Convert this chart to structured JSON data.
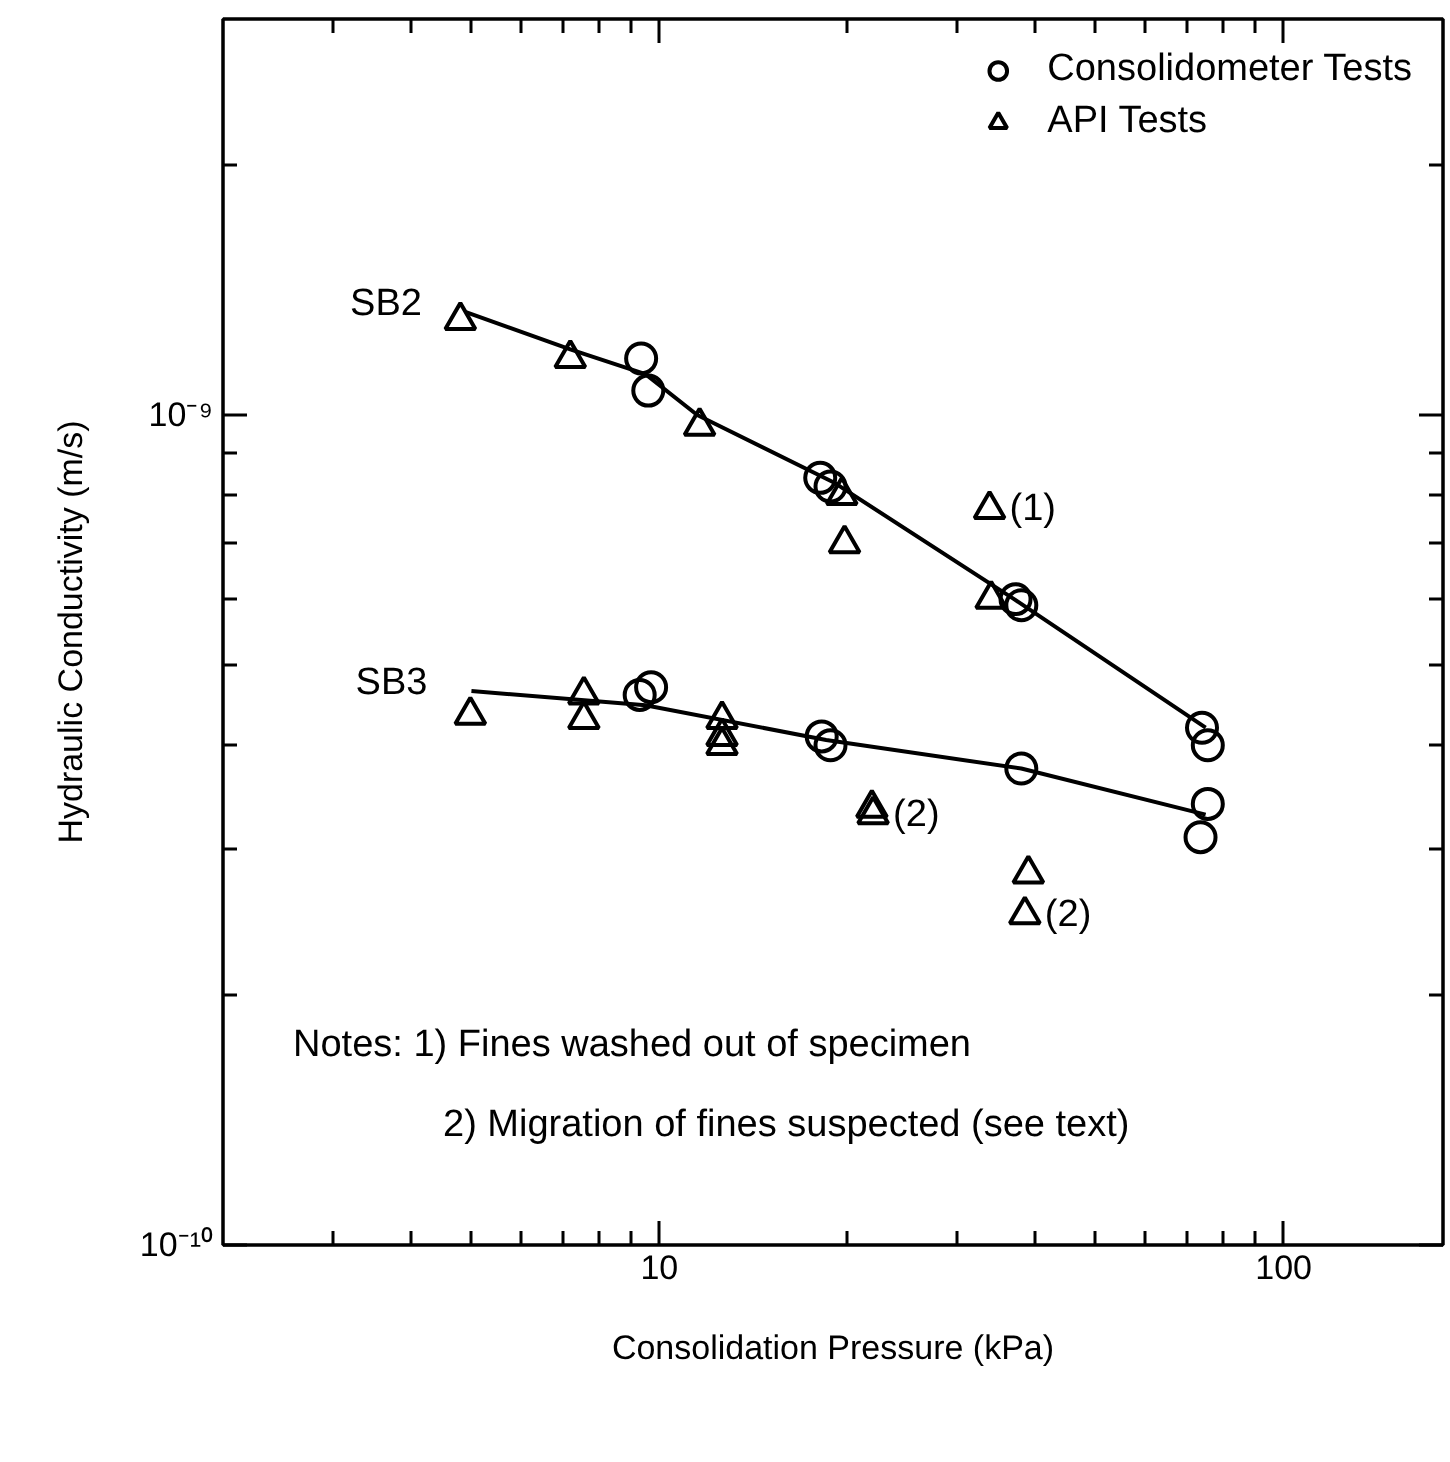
{
  "chart_data": {
    "type": "scatter",
    "xlabel": "Consolidation Pressure (kPa)",
    "ylabel": "Hydraulic Conductivity (m/s)",
    "log": "xy",
    "xlim": [
      2,
      180
    ],
    "ylim": [
      1e-10,
      3e-09
    ],
    "xticks": [
      10,
      100
    ],
    "yticks": [
      {
        "value": 1e-10,
        "label": "10⁻¹⁰"
      },
      {
        "value": 1e-09,
        "label": "10⁻⁹"
      }
    ],
    "grid": false,
    "legend": "top right",
    "series": [
      {
        "name": "Consolidometer Tests",
        "marker": "circle",
        "color": "#000000",
        "x": [
          9.35,
          9.6,
          18.1,
          18.8,
          37.2,
          38,
          74,
          75.6,
          9.3,
          9.7,
          18.2,
          18.8,
          38,
          75.6,
          73.6
        ],
        "values": [
          1.17e-09,
          1.07e-09,
          8.4e-10,
          8.2e-10,
          6e-10,
          5.9e-10,
          4.2e-10,
          4e-10,
          4.6e-10,
          4.7e-10,
          4.1e-10,
          4e-10,
          3.75e-10,
          3.4e-10,
          3.1e-10
        ]
      },
      {
        "name": "API Tests",
        "marker": "triangle",
        "color": "#000000",
        "x": [
          4.8,
          7.2,
          11.6,
          19.6,
          19.8,
          33.8,
          34.0,
          4.98,
          7.57,
          7.57,
          12.6,
          12.6,
          12.6,
          21.9,
          22,
          39,
          38.5
        ],
        "values": [
          1.3e-09,
          1.17e-09,
          9.7e-10,
          8e-10,
          7e-10,
          7.7e-10,
          6e-10,
          4.35e-10,
          4.6e-10,
          4.3e-10,
          4.3e-10,
          4.1e-10,
          4e-10,
          3.36e-10,
          3.3e-10,
          2.8e-10,
          2.5e-10
        ]
      },
      {
        "type": "line",
        "color": "#000000",
        "x": [
          4.9,
          7.2,
          9.5,
          11.5,
          19,
          37,
          75
        ],
        "values": [
          1.33e-09,
          1.2e-09,
          1.12e-09,
          1e-09,
          8.3e-10,
          6e-10,
          4.2e-10
        ]
      },
      {
        "type": "line",
        "color": "#000000",
        "x": [
          5,
          9.5,
          18.5,
          38,
          75
        ],
        "values": [
          4.65e-10,
          4.47e-10,
          4.06e-10,
          3.75e-10,
          3.3e-10
        ]
      }
    ],
    "annotations": [
      {
        "text": "SB2",
        "x": 4.9,
        "y": 1.33e-09
      },
      {
        "text": "SB3",
        "x": 5,
        "y": 4.65e-10
      },
      {
        "text": "(1)",
        "x": 33.8,
        "y": 7.7e-10
      },
      {
        "text": "(2)",
        "x": 22,
        "y": 3.3e-10
      },
      {
        "text": "(2)",
        "x": 38.5,
        "y": 2.5e-10
      },
      "Notes: 1) Fines washed out of specimen",
      "2) Migration of fines suspected (see text)"
    ]
  }
}
